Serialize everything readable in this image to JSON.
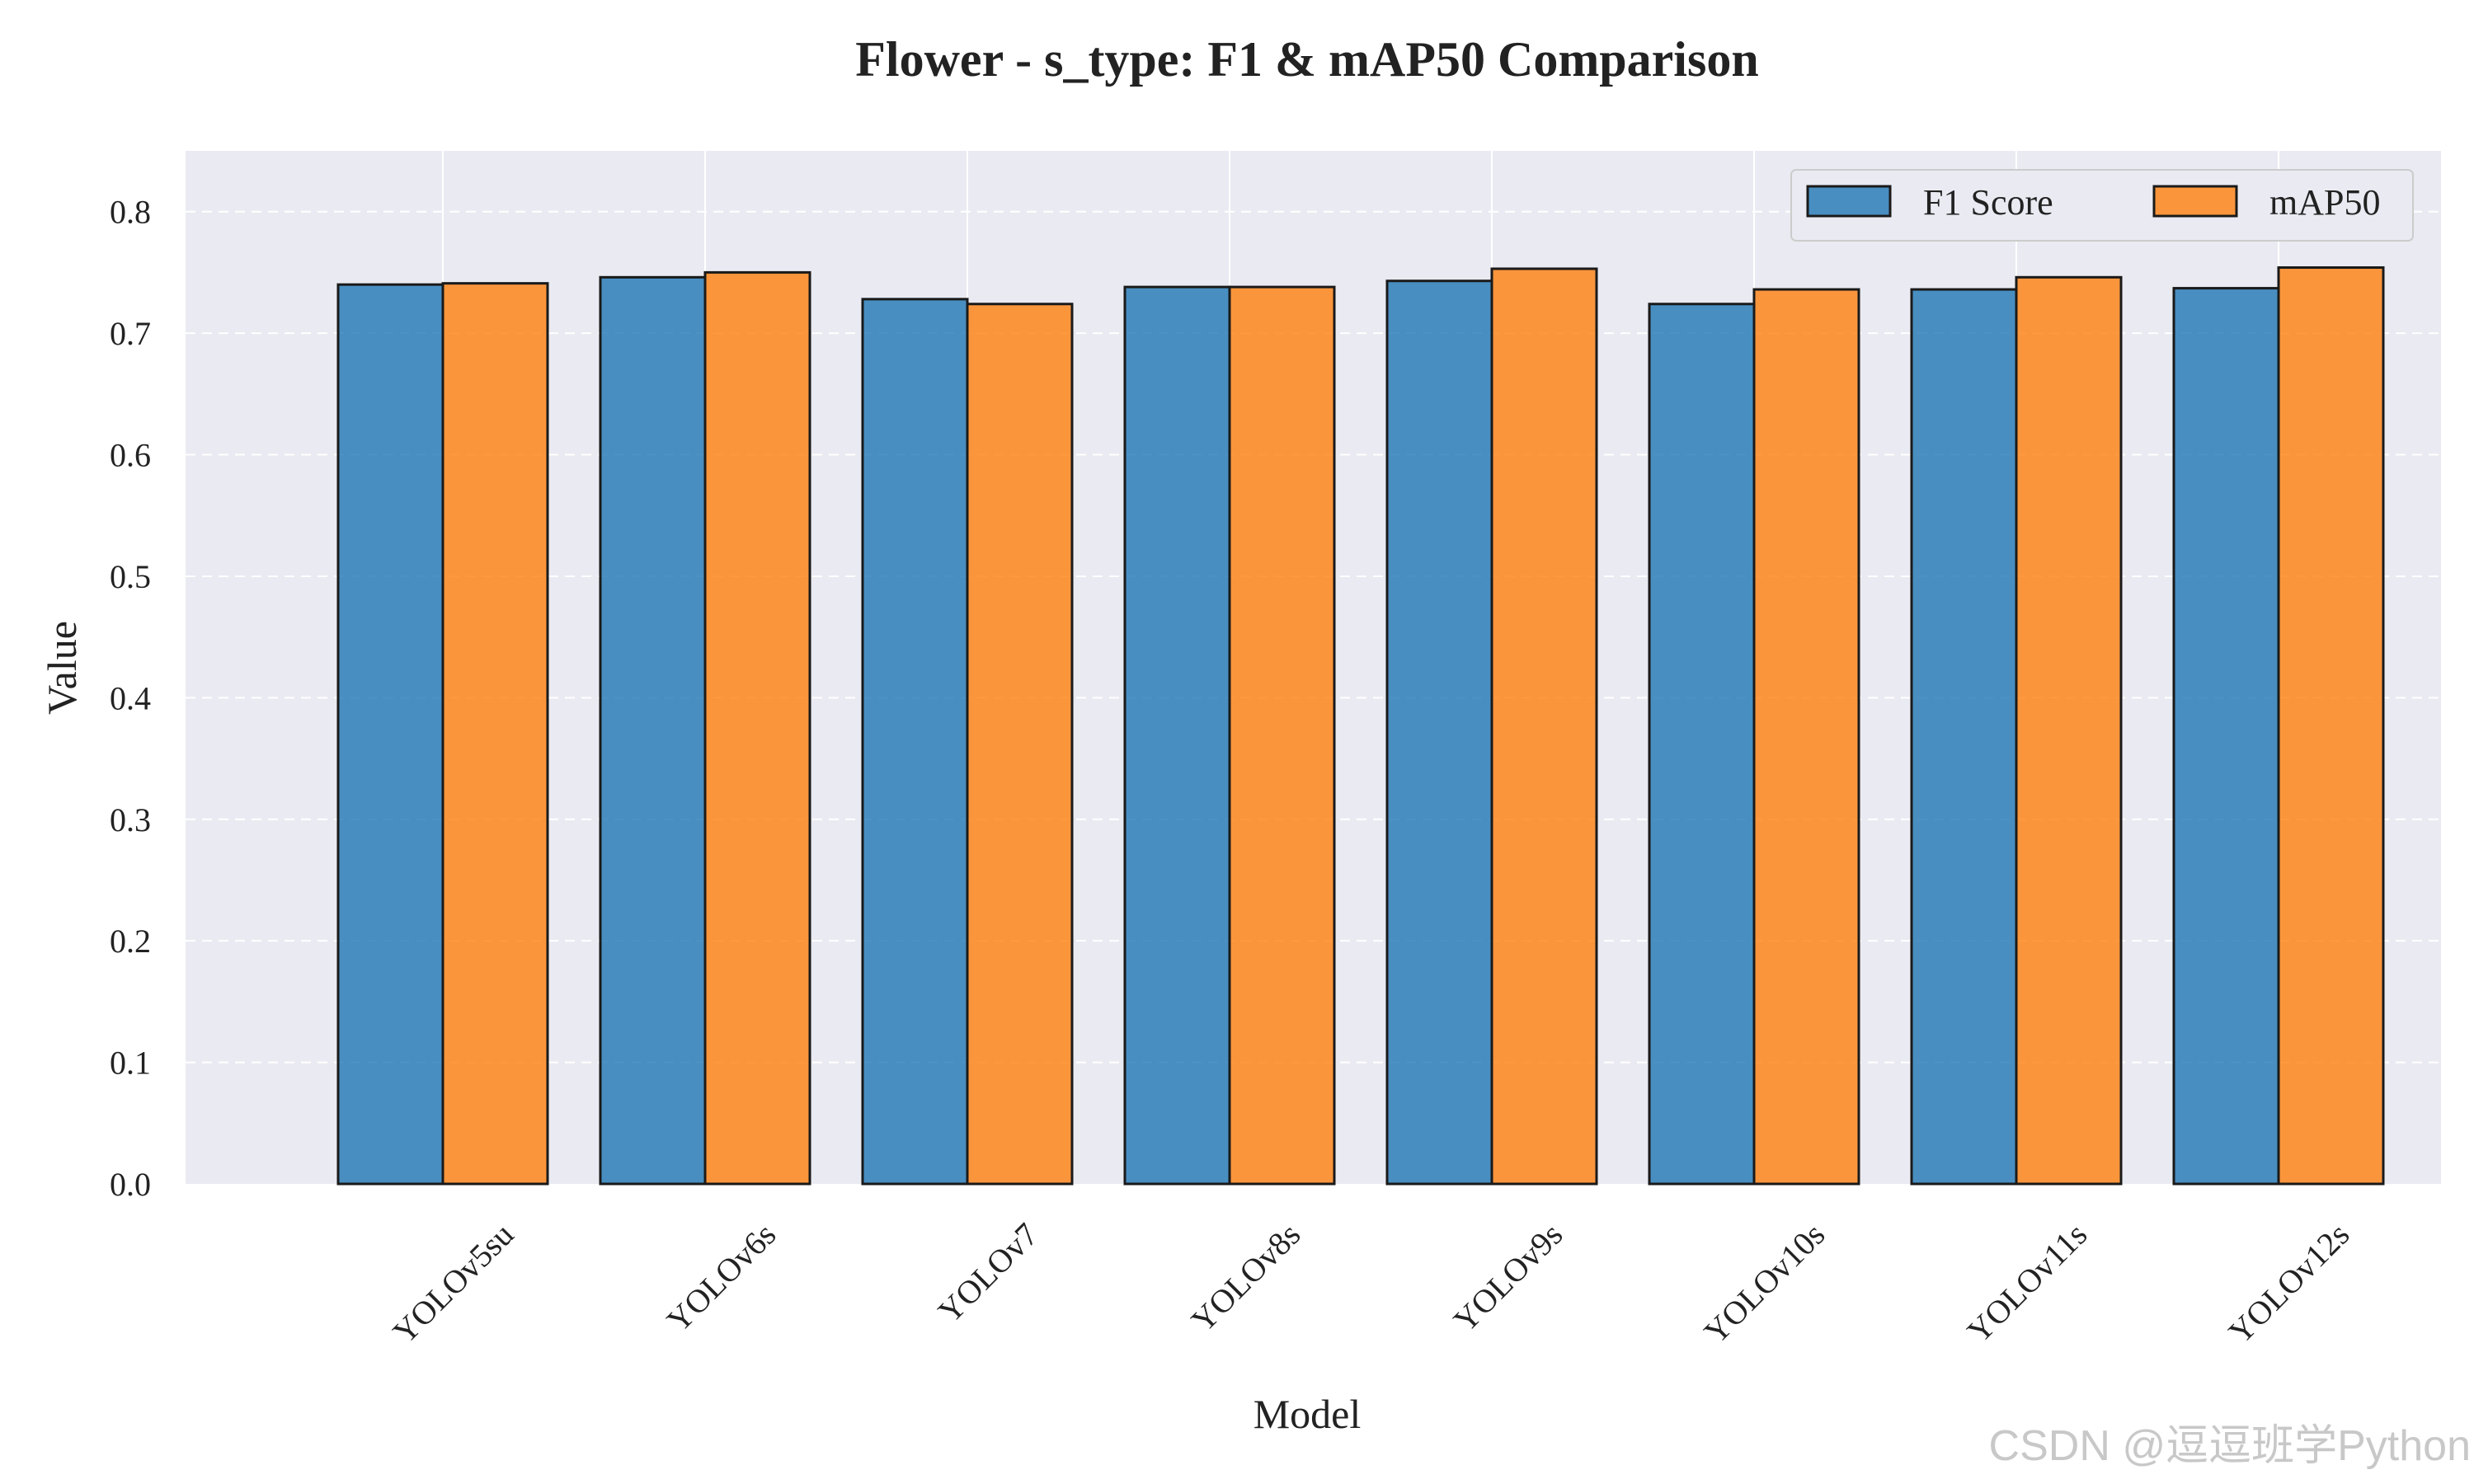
{
  "watermark": "CSDN @逗逗班学Python",
  "chart_data": {
    "type": "bar",
    "title": "Flower - s_type: F1 & mAP50 Comparison",
    "xlabel": "Model",
    "ylabel": "Value",
    "categories": [
      "YOLOv5su",
      "YOLOv6s",
      "YOLOv7",
      "YOLOv8s",
      "YOLOv9s",
      "YOLOv10s",
      "YOLOv11s",
      "YOLOv12s"
    ],
    "series": [
      {
        "name": "F1 Score",
        "color": "#1f77b4",
        "values": [
          0.74,
          0.746,
          0.728,
          0.738,
          0.743,
          0.724,
          0.736,
          0.737
        ]
      },
      {
        "name": "mAP50",
        "color": "#ff7f0e",
        "values": [
          0.741,
          0.75,
          0.724,
          0.738,
          0.753,
          0.736,
          0.746,
          0.754
        ]
      }
    ],
    "ylim": [
      0,
      0.85
    ],
    "yticks": [
      "0.0",
      "0.1",
      "0.2",
      "0.3",
      "0.4",
      "0.5",
      "0.6",
      "0.7",
      "0.8"
    ],
    "grid": true,
    "legend_position": "top-right",
    "background_color": "#eaeaf2"
  }
}
